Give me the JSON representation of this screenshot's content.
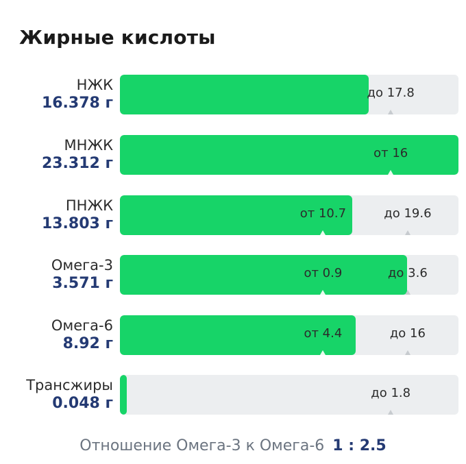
{
  "header": {
    "title": "Жирные кислоты"
  },
  "rows": [
    {
      "name": "НЖК",
      "value": "16.378 г",
      "fill": 0.735,
      "markers": [
        {
          "text": "до 17.8",
          "pos": 0.8
        }
      ]
    },
    {
      "name": "МНЖК",
      "value": "23.312 г",
      "fill": 1.0,
      "markers": [
        {
          "text": "от 16",
          "pos": 0.8
        }
      ]
    },
    {
      "name": "ПНЖК",
      "value": "13.803 г",
      "fill": 0.686,
      "markers": [
        {
          "text": "от 10.7",
          "pos": 0.6
        },
        {
          "text": "до 19.6",
          "pos": 0.85
        }
      ]
    },
    {
      "name": "Омега-3",
      "value": "3.571 г",
      "fill": 0.849,
      "markers": [
        {
          "text": "от 0.9",
          "pos": 0.6
        },
        {
          "text": "до 3.6",
          "pos": 0.85
        }
      ]
    },
    {
      "name": "Омега-6",
      "value": "8.92 г",
      "fill": 0.696,
      "markers": [
        {
          "text": "от 4.4",
          "pos": 0.6
        },
        {
          "text": "до 16",
          "pos": 0.85
        }
      ]
    },
    {
      "name": "Трансжиры",
      "value": "0.048 г",
      "fill": 0.02,
      "markers": [
        {
          "text": "до 1.8",
          "pos": 0.8
        }
      ]
    }
  ],
  "ratio": {
    "label": "Отношение Омега-3 к Омега-6",
    "value": "1 : 2.5"
  },
  "colors": {
    "fill": "#17d468",
    "track": "#eceef0",
    "value": "#243a73"
  }
}
